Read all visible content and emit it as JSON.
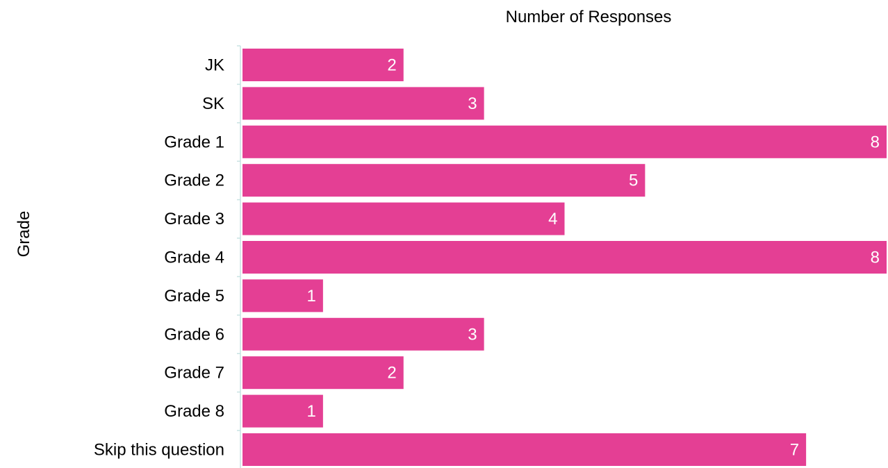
{
  "chart_data": {
    "type": "bar",
    "orientation": "horizontal",
    "title": "",
    "xlabel": "Number of Responses",
    "ylabel": "Grade",
    "categories": [
      "JK",
      "SK",
      "Grade 1",
      "Grade 2",
      "Grade 3",
      "Grade 4",
      "Grade 5",
      "Grade 6",
      "Grade 7",
      "Grade 8",
      "Skip this question"
    ],
    "values": [
      2,
      3,
      8,
      5,
      4,
      8,
      1,
      3,
      2,
      1,
      7
    ],
    "xlim": [
      0,
      8
    ],
    "grid": false,
    "legend": "none",
    "data_labels": true,
    "colors": {
      "bar": "#e43f94",
      "value_text": "#ffffff",
      "axis_line": "#c9e3e3"
    }
  }
}
